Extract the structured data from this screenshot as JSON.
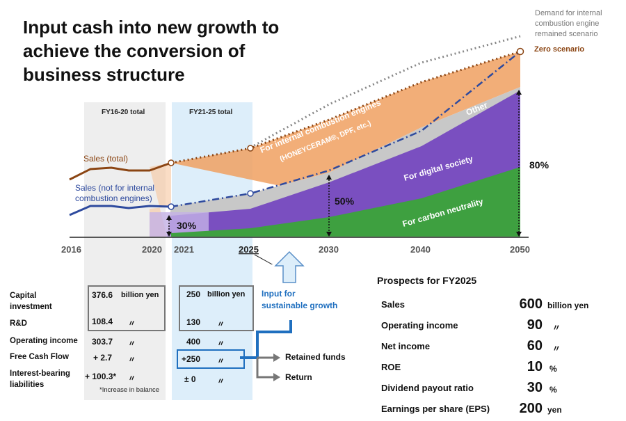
{
  "title": "Input cash into new growth to achieve the conversion of business structure",
  "colors": {
    "sales_total": "#8b4513",
    "sales_not_ice": "#2e4a9e",
    "zero_scenario": "#8b4513",
    "remained_scenario": "#888888",
    "ice_area": "#f0a060",
    "other_area": "#c8c8c8",
    "digital_area": "#7a4fc0",
    "carbon_area": "#3ea040",
    "fy21_25_bg": "#ddeefa",
    "fy16_20_bg": "#eeeeee",
    "accent_blue": "#1f6fbf"
  },
  "header_panels": {
    "fy16_20": "FY16-20 total",
    "fy21_25": "FY21-25 total"
  },
  "chart_data": {
    "type": "area",
    "x_ticks": [
      "2016",
      "2020",
      "2021",
      "2025",
      "2030",
      "2040",
      "2050"
    ],
    "series": [
      {
        "name": "Sales (total)",
        "kind": "line",
        "x": [
          2016,
          2017,
          2018,
          2019,
          2020
        ],
        "values": [
          515,
          545,
          540,
          542,
          560
        ]
      },
      {
        "name": "Sales (not for internal combustion engines)",
        "kind": "line",
        "x": [
          2016,
          2017,
          2018,
          2019,
          2020
        ],
        "values": [
          445,
          465,
          466,
          462,
          465
        ]
      },
      {
        "name": "Zero scenario",
        "kind": "dotted",
        "x": [
          2020,
          2025,
          2030,
          2040,
          2050
        ],
        "values": [
          560,
          600,
          680,
          800,
          920
        ]
      },
      {
        "name": "Demand for internal combustion engine remained scenario",
        "kind": "dotted",
        "x": [
          2025,
          2030,
          2040,
          2050
        ],
        "values": [
          600,
          720,
          850,
          960
        ]
      },
      {
        "name": "Sales (not for internal combustion engines)",
        "kind": "dashdot",
        "x": [
          2020,
          2021,
          2025,
          2030,
          2040,
          2050
        ],
        "values": [
          465,
          465,
          500,
          545,
          660,
          920
        ]
      }
    ],
    "areas": [
      "For internal combustion engines (HONEYCERAM®, DPF, etc.)",
      "Other",
      "For digital society",
      "For carbon neutrality"
    ],
    "annotations": {
      "sales_total": "Sales (total)",
      "sales_not_ice": "Sales (not for internal combustion engines)",
      "ice": "For internal combustion engines",
      "ice_sub": "(HONEYCERAM®, DPF, etc.)",
      "other": "Other",
      "digital": "For digital society",
      "carbon": "For carbon neutrality",
      "pct_2021": "30%",
      "pct_2030": "50%",
      "pct_2050": "80%",
      "zero_scenario": "Zero scenario",
      "remained_1": "Demand for internal",
      "remained_2": "combustion engine",
      "remained_3": "remained scenario"
    }
  },
  "table": {
    "rows": [
      {
        "label": "Capital investment",
        "fy16_20": "376.6",
        "fy21_25": "250"
      },
      {
        "label": "R&D",
        "fy16_20": "108.4",
        "fy21_25": "130"
      },
      {
        "label": "Operating income",
        "fy16_20": "303.7",
        "fy21_25": "400"
      },
      {
        "label": "Free Cash Flow",
        "fy16_20": "+ 2.7",
        "fy21_25": "+250"
      },
      {
        "label": "Interest-bearing liabilities",
        "fy16_20": "+ 100.3*",
        "fy21_25": "± 0"
      }
    ],
    "row_labels": {
      "capital_1": "Capital",
      "capital_2": "investment",
      "rd": "R&D",
      "opinc": "Operating income",
      "fcf": "Free Cash Flow",
      "ibl_1": "Interest-bearing",
      "ibl_2": "liabilities"
    },
    "unit_billion_yen": "billion yen",
    "ditto": "〃",
    "footnote": "*Increase in balance"
  },
  "flow": {
    "input_label_1": "Input for",
    "input_label_2": "sustainable growth",
    "retained": "Retained funds",
    "return": "Return"
  },
  "prospects": {
    "title": "Prospects for FY2025",
    "rows": [
      {
        "label": "Sales",
        "value": "600",
        "unit": "billion yen"
      },
      {
        "label": "Operating income",
        "value": "90",
        "unit": "〃"
      },
      {
        "label": "Net income",
        "value": "60",
        "unit": "〃"
      },
      {
        "label": "ROE",
        "value": "10",
        "unit": "%"
      },
      {
        "label": "Dividend payout ratio",
        "value": "30",
        "unit": "%"
      },
      {
        "label": "Earnings per share (EPS)",
        "value": "200",
        "unit": "yen"
      }
    ]
  }
}
